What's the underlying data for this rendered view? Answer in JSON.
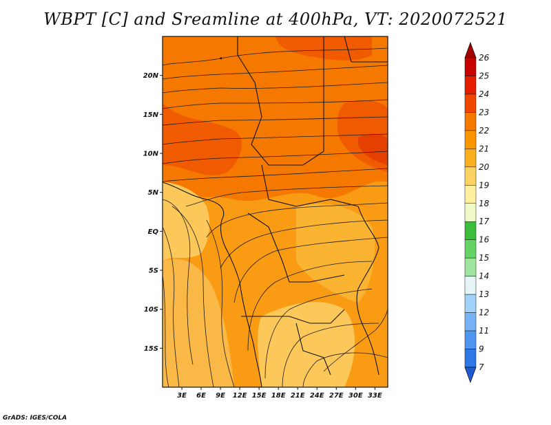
{
  "title": "WBPT [C] and Sreamline at 400hPa, VT: 2020072521",
  "credit": "GrADS: IGES/COLA",
  "map": {
    "lat_labels": [
      "20N",
      "15N",
      "10N",
      "5N",
      "EQ",
      "5S",
      "10S",
      "15S"
    ],
    "lat_values": [
      20,
      15,
      10,
      5,
      0,
      -5,
      -10,
      -15
    ],
    "lon_labels": [
      "3E",
      "6E",
      "9E",
      "12E",
      "15E",
      "18E",
      "21E",
      "24E",
      "27E",
      "30E",
      "33E"
    ],
    "lon_values": [
      3,
      6,
      9,
      12,
      15,
      18,
      21,
      24,
      27,
      30,
      33
    ],
    "lon_range": [
      0,
      35
    ],
    "lat_range": [
      -20,
      25
    ]
  },
  "colorbar": {
    "labels": [
      "26",
      "25",
      "24",
      "23",
      "22",
      "21",
      "20",
      "19",
      "18",
      "17",
      "16",
      "15",
      "14",
      "13",
      "12",
      "11",
      "9",
      "7"
    ],
    "colors": [
      "#a50000",
      "#c80000",
      "#e61e00",
      "#f04600",
      "#f57800",
      "#fa9600",
      "#faaf1e",
      "#fcd264",
      "#fff0a0",
      "#f0fac8",
      "#3cbe3c",
      "#64d264",
      "#a0e6a0",
      "#e6f5f5",
      "#a0d2fa",
      "#78b4f5",
      "#5096f0",
      "#2d78e6",
      "#1e5ad2"
    ]
  }
}
